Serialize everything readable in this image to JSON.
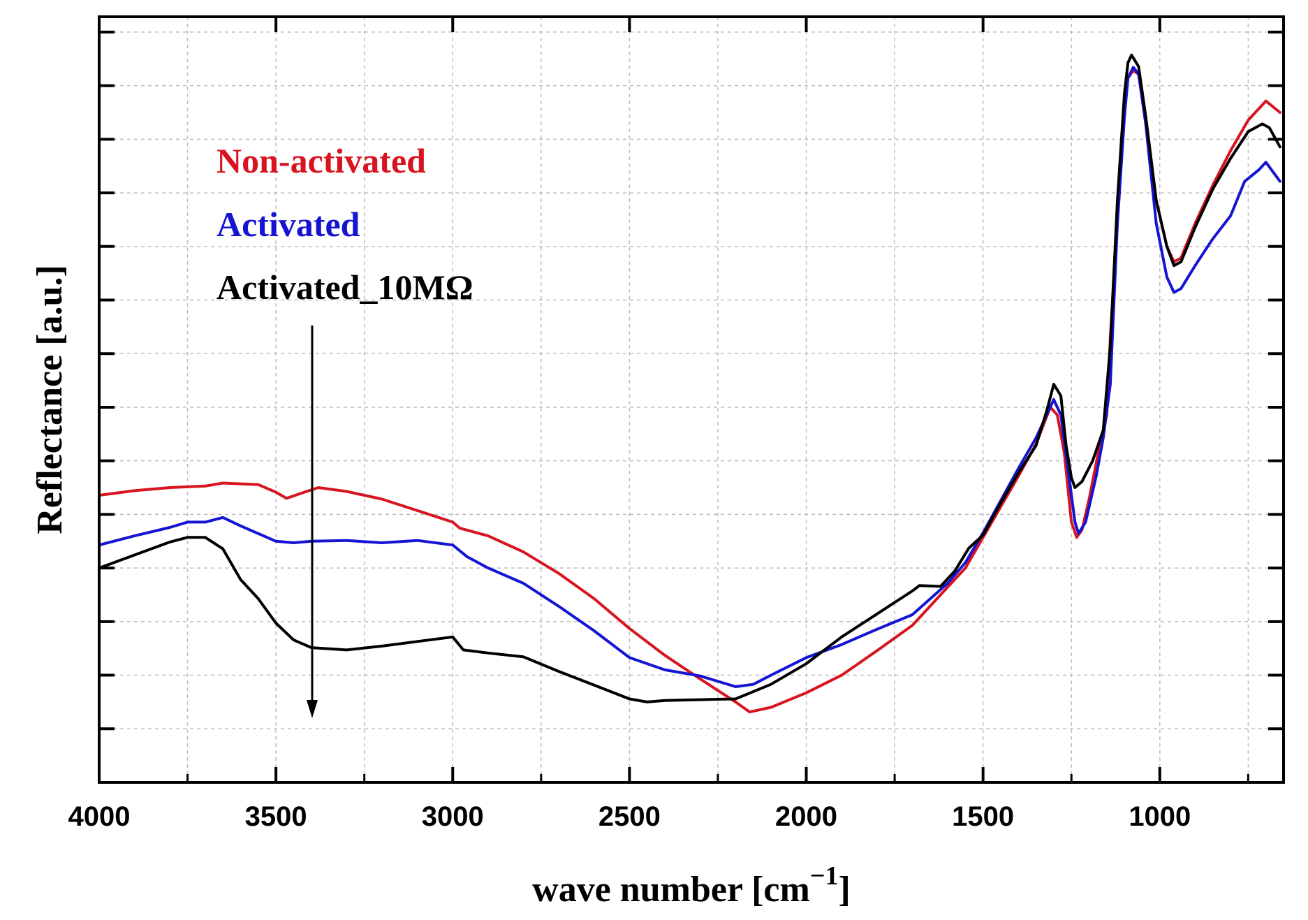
{
  "chart_data": {
    "type": "line",
    "title": "",
    "xlabel": "wave number [cm",
    "xlabel_sup": "−1",
    "xlabel_end": "]",
    "ylabel": "Reflectance [a.u.]",
    "xlim": [
      4000,
      650
    ],
    "ylim": [
      0,
      100
    ],
    "x_reversed": true,
    "grid": true,
    "y_ticks": [
      7,
      14,
      21,
      28,
      35,
      42,
      49,
      56,
      63,
      70,
      77,
      84,
      91,
      98
    ],
    "x_ticks": [
      4000,
      3500,
      3000,
      2500,
      2000,
      1500,
      1000
    ],
    "x_tick_labels": [
      "4000",
      "3500",
      "3000",
      "2500",
      "2000",
      "1500",
      1000
    ],
    "legend_position": "top-left",
    "series": [
      {
        "name": "Non-activated",
        "color": "#d7141f",
        "points": [
          [
            4000,
            37.5
          ],
          [
            3900,
            38.1
          ],
          [
            3800,
            38.5
          ],
          [
            3700,
            38.7
          ],
          [
            3650,
            39.1
          ],
          [
            3550,
            38.9
          ],
          [
            3500,
            37.9
          ],
          [
            3470,
            37.1
          ],
          [
            3420,
            37.9
          ],
          [
            3380,
            38.5
          ],
          [
            3300,
            38.0
          ],
          [
            3200,
            37.0
          ],
          [
            3100,
            35.5
          ],
          [
            3000,
            34.0
          ],
          [
            2980,
            33.2
          ],
          [
            2900,
            32.2
          ],
          [
            2800,
            30.1
          ],
          [
            2700,
            27.3
          ],
          [
            2600,
            24.0
          ],
          [
            2500,
            20.1
          ],
          [
            2400,
            16.6
          ],
          [
            2300,
            13.5
          ],
          [
            2200,
            10.5
          ],
          [
            2160,
            9.2
          ],
          [
            2100,
            9.8
          ],
          [
            2000,
            11.7
          ],
          [
            1900,
            14.0
          ],
          [
            1800,
            17.2
          ],
          [
            1700,
            20.5
          ],
          [
            1600,
            25.5
          ],
          [
            1550,
            28.0
          ],
          [
            1500,
            32.0
          ],
          [
            1450,
            36.0
          ],
          [
            1400,
            40.0
          ],
          [
            1350,
            44.2
          ],
          [
            1310,
            49.0
          ],
          [
            1290,
            48.0
          ],
          [
            1270,
            43.0
          ],
          [
            1250,
            34.0
          ],
          [
            1235,
            32.0
          ],
          [
            1220,
            33.0
          ],
          [
            1200,
            37.0
          ],
          [
            1170,
            44.0
          ],
          [
            1150,
            48.0
          ],
          [
            1140,
            58.0
          ],
          [
            1120,
            74.0
          ],
          [
            1100,
            88.0
          ],
          [
            1090,
            92.0
          ],
          [
            1075,
            93.0
          ],
          [
            1060,
            92.5
          ],
          [
            1040,
            87.0
          ],
          [
            1010,
            76.0
          ],
          [
            980,
            70.0
          ],
          [
            960,
            68.0
          ],
          [
            940,
            68.5
          ],
          [
            900,
            73.0
          ],
          [
            850,
            78.0
          ],
          [
            800,
            82.5
          ],
          [
            750,
            86.5
          ],
          [
            700,
            89.0
          ],
          [
            660,
            87.5
          ]
        ]
      },
      {
        "name": "Activated",
        "color": "#1414d2",
        "points": [
          [
            4000,
            31.0
          ],
          [
            3900,
            32.2
          ],
          [
            3800,
            33.3
          ],
          [
            3750,
            34.0
          ],
          [
            3700,
            34.0
          ],
          [
            3650,
            34.6
          ],
          [
            3600,
            33.5
          ],
          [
            3500,
            31.5
          ],
          [
            3450,
            31.3
          ],
          [
            3400,
            31.5
          ],
          [
            3300,
            31.6
          ],
          [
            3200,
            31.3
          ],
          [
            3100,
            31.6
          ],
          [
            3000,
            31.0
          ],
          [
            2960,
            29.5
          ],
          [
            2900,
            28.0
          ],
          [
            2800,
            26.0
          ],
          [
            2700,
            23.0
          ],
          [
            2600,
            19.8
          ],
          [
            2500,
            16.3
          ],
          [
            2400,
            14.7
          ],
          [
            2300,
            13.9
          ],
          [
            2200,
            12.5
          ],
          [
            2150,
            12.8
          ],
          [
            2100,
            14.0
          ],
          [
            2000,
            16.3
          ],
          [
            1900,
            18.0
          ],
          [
            1800,
            20.0
          ],
          [
            1700,
            21.9
          ],
          [
            1600,
            26.0
          ],
          [
            1550,
            28.7
          ],
          [
            1500,
            32.6
          ],
          [
            1450,
            36.8
          ],
          [
            1400,
            41.0
          ],
          [
            1350,
            45.0
          ],
          [
            1300,
            50.0
          ],
          [
            1280,
            48.0
          ],
          [
            1260,
            41.0
          ],
          [
            1240,
            34.0
          ],
          [
            1230,
            32.5
          ],
          [
            1210,
            34.0
          ],
          [
            1180,
            40.0
          ],
          [
            1160,
            45.0
          ],
          [
            1140,
            52.0
          ],
          [
            1120,
            73.0
          ],
          [
            1100,
            87.0
          ],
          [
            1090,
            92.0
          ],
          [
            1075,
            93.4
          ],
          [
            1060,
            92.5
          ],
          [
            1040,
            86.0
          ],
          [
            1010,
            73.0
          ],
          [
            980,
            66.0
          ],
          [
            960,
            64.0
          ],
          [
            940,
            64.5
          ],
          [
            900,
            67.5
          ],
          [
            850,
            71.0
          ],
          [
            800,
            74.0
          ],
          [
            760,
            78.5
          ],
          [
            720,
            80.0
          ],
          [
            700,
            81.0
          ],
          [
            660,
            78.5
          ]
        ]
      },
      {
        "name": "Activated_10MΩ",
        "color": "#000000",
        "points": [
          [
            4000,
            28.0
          ],
          [
            3900,
            29.7
          ],
          [
            3800,
            31.4
          ],
          [
            3750,
            32.0
          ],
          [
            3700,
            32.0
          ],
          [
            3650,
            30.5
          ],
          [
            3600,
            26.5
          ],
          [
            3550,
            24.0
          ],
          [
            3500,
            20.8
          ],
          [
            3450,
            18.6
          ],
          [
            3400,
            17.6
          ],
          [
            3300,
            17.3
          ],
          [
            3200,
            17.8
          ],
          [
            3100,
            18.4
          ],
          [
            3000,
            19.0
          ],
          [
            2970,
            17.3
          ],
          [
            2900,
            16.9
          ],
          [
            2800,
            16.4
          ],
          [
            2700,
            14.5
          ],
          [
            2600,
            12.7
          ],
          [
            2500,
            10.9
          ],
          [
            2450,
            10.5
          ],
          [
            2400,
            10.7
          ],
          [
            2300,
            10.8
          ],
          [
            2200,
            10.9
          ],
          [
            2100,
            12.8
          ],
          [
            2000,
            15.5
          ],
          [
            1900,
            19.0
          ],
          [
            1800,
            22.0
          ],
          [
            1700,
            25.0
          ],
          [
            1680,
            25.7
          ],
          [
            1620,
            25.6
          ],
          [
            1580,
            27.6
          ],
          [
            1540,
            30.6
          ],
          [
            1500,
            32.3
          ],
          [
            1450,
            36.5
          ],
          [
            1400,
            40.4
          ],
          [
            1350,
            44.0
          ],
          [
            1320,
            48.5
          ],
          [
            1300,
            52.0
          ],
          [
            1280,
            50.5
          ],
          [
            1265,
            44.0
          ],
          [
            1250,
            39.8
          ],
          [
            1240,
            38.5
          ],
          [
            1220,
            39.3
          ],
          [
            1190,
            42.0
          ],
          [
            1160,
            46.0
          ],
          [
            1140,
            57.0
          ],
          [
            1120,
            76.0
          ],
          [
            1100,
            90.0
          ],
          [
            1090,
            94.0
          ],
          [
            1080,
            95.0
          ],
          [
            1060,
            93.5
          ],
          [
            1040,
            87.0
          ],
          [
            1010,
            76.0
          ],
          [
            980,
            70.0
          ],
          [
            960,
            67.5
          ],
          [
            940,
            68.0
          ],
          [
            900,
            72.5
          ],
          [
            850,
            77.5
          ],
          [
            800,
            81.5
          ],
          [
            750,
            85.0
          ],
          [
            710,
            86.0
          ],
          [
            690,
            85.5
          ],
          [
            660,
            83.0
          ]
        ]
      }
    ]
  },
  "legend": {
    "items": [
      {
        "label": "Non-activated",
        "color": "#d7141f"
      },
      {
        "label": "Activated",
        "color": "#1414d2"
      },
      {
        "label": "Activated_10MΩ",
        "color": "#000000"
      }
    ]
  }
}
